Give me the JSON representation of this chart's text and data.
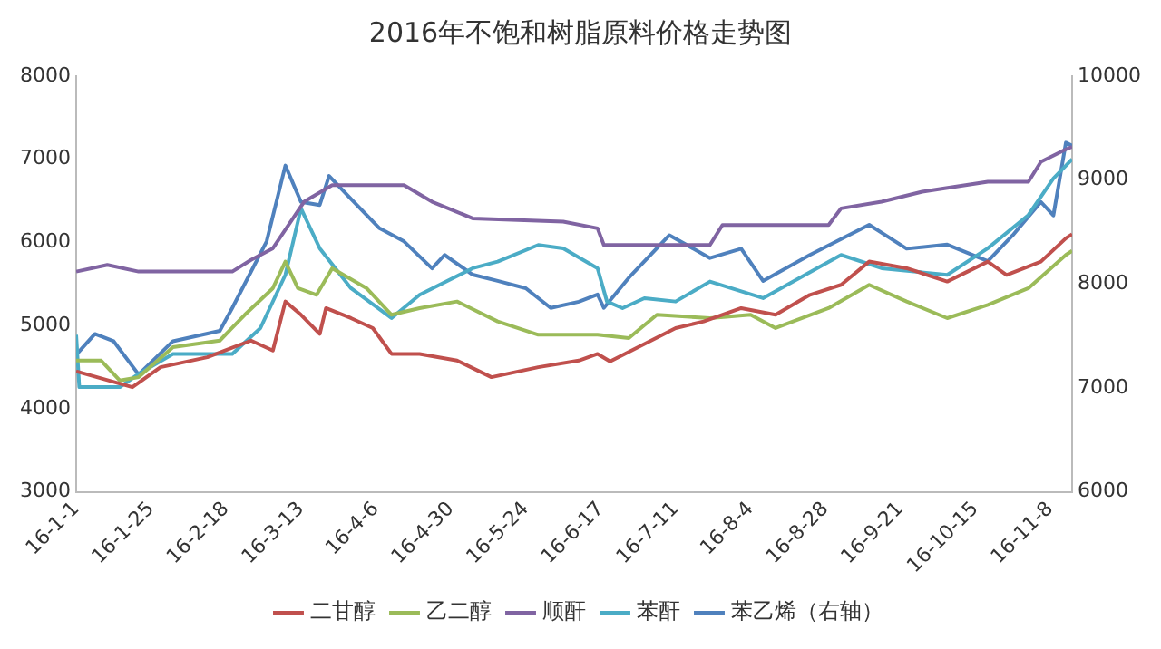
{
  "chart_data": {
    "type": "line",
    "title": "2016年不饱和树脂原料价格走势图",
    "marker": "none",
    "line_style": "solid",
    "grid": false,
    "legend": "bottom",
    "xlim": [
      "2016-01-01",
      "2016-11-15"
    ],
    "xticks": [
      {
        "value": "2016-01-01",
        "label": "16-1-1"
      },
      {
        "value": "2016-01-25",
        "label": "16-1-25"
      },
      {
        "value": "2016-02-18",
        "label": "16-2-18"
      },
      {
        "value": "2016-03-13",
        "label": "16-3-13"
      },
      {
        "value": "2016-04-06",
        "label": "16-4-6"
      },
      {
        "value": "2016-04-30",
        "label": "16-4-30"
      },
      {
        "value": "2016-05-24",
        "label": "16-5-24"
      },
      {
        "value": "2016-06-17",
        "label": "16-6-17"
      },
      {
        "value": "2016-07-11",
        "label": "16-7-11"
      },
      {
        "value": "2016-08-04",
        "label": "16-8-4"
      },
      {
        "value": "2016-08-28",
        "label": "16-8-28"
      },
      {
        "value": "2016-09-21",
        "label": "16-9-21"
      },
      {
        "value": "2016-10-15",
        "label": "16-10-15"
      },
      {
        "value": "2016-11-08",
        "label": "16-11-8"
      }
    ],
    "ylim": [
      3000,
      8000
    ],
    "yticks": [
      3000,
      4000,
      5000,
      6000,
      7000,
      8000
    ],
    "y2lim": [
      6000,
      10000
    ],
    "y2ticks": [
      6000,
      7000,
      8000,
      9000,
      10000
    ],
    "series": [
      {
        "name": "二甘醇",
        "color": "#c0504d",
        "x": [
          "2016-01-01",
          "2016-01-19",
          "2016-01-28",
          "2016-02-12",
          "2016-02-26",
          "2016-03-04",
          "2016-03-08",
          "2016-03-13",
          "2016-03-19",
          "2016-03-21",
          "2016-03-29",
          "2016-04-05",
          "2016-04-11",
          "2016-04-20",
          "2016-05-02",
          "2016-05-13",
          "2016-05-28",
          "2016-06-10",
          "2016-06-16",
          "2016-06-20",
          "2016-07-11",
          "2016-07-20",
          "2016-08-01",
          "2016-08-12",
          "2016-08-23",
          "2016-09-02",
          "2016-09-11",
          "2016-09-23",
          "2016-10-06",
          "2016-10-19",
          "2016-10-25",
          "2016-11-05",
          "2016-11-13",
          "2016-11-15"
        ],
        "values": [
          4450,
          4260,
          4500,
          4620,
          4820,
          4700,
          5290,
          5130,
          4900,
          5210,
          5090,
          4970,
          4660,
          4660,
          4580,
          4380,
          4500,
          4580,
          4660,
          4570,
          4970,
          5050,
          5210,
          5130,
          5370,
          5490,
          5770,
          5690,
          5530,
          5770,
          5610,
          5770,
          6050,
          6100
        ]
      },
      {
        "name": "乙二醇",
        "color": "#9bbb59",
        "x": [
          "2016-01-01",
          "2016-01-09",
          "2016-01-15",
          "2016-01-21",
          "2016-02-01",
          "2016-02-16",
          "2016-02-24",
          "2016-03-04",
          "2016-03-08",
          "2016-03-12",
          "2016-03-18",
          "2016-03-23",
          "2016-04-03",
          "2016-04-11",
          "2016-04-20",
          "2016-05-02",
          "2016-05-15",
          "2016-05-28",
          "2016-06-16",
          "2016-06-26",
          "2016-07-05",
          "2016-07-22",
          "2016-08-04",
          "2016-08-12",
          "2016-08-29",
          "2016-09-11",
          "2016-09-23",
          "2016-10-06",
          "2016-10-19",
          "2016-11-01",
          "2016-11-13",
          "2016-11-15"
        ],
        "values": [
          4580,
          4580,
          4340,
          4380,
          4740,
          4820,
          5130,
          5450,
          5770,
          5450,
          5370,
          5690,
          5450,
          5130,
          5210,
          5290,
          5050,
          4890,
          4890,
          4850,
          5130,
          5090,
          5130,
          4970,
          5210,
          5490,
          5290,
          5090,
          5250,
          5450,
          5850,
          5900
        ]
      },
      {
        "name": "顺酐",
        "color": "#8064a2",
        "x": [
          "2016-01-01",
          "2016-01-11",
          "2016-01-21",
          "2016-02-20",
          "2016-02-26",
          "2016-03-04",
          "2016-03-14",
          "2016-03-23",
          "2016-04-15",
          "2016-04-24",
          "2016-05-07",
          "2016-06-05",
          "2016-06-16",
          "2016-06-18",
          "2016-07-22",
          "2016-07-26",
          "2016-08-29",
          "2016-09-02",
          "2016-09-15",
          "2016-09-28",
          "2016-10-19",
          "2016-11-01",
          "2016-11-05",
          "2016-11-13",
          "2016-11-15"
        ],
        "values": [
          5650,
          5730,
          5650,
          5650,
          5790,
          5930,
          6490,
          6690,
          6690,
          6490,
          6290,
          6250,
          6170,
          5970,
          5970,
          6210,
          6210,
          6410,
          6490,
          6610,
          6730,
          6730,
          6970,
          7120,
          7150
        ]
      },
      {
        "name": "苯酐",
        "color": "#4bacc6",
        "x": [
          "2016-01-01",
          "2016-01-02",
          "2016-01-15",
          "2016-01-21",
          "2016-02-01",
          "2016-02-20",
          "2016-02-29",
          "2016-03-08",
          "2016-03-13",
          "2016-03-19",
          "2016-03-29",
          "2016-04-11",
          "2016-04-20",
          "2016-05-07",
          "2016-05-15",
          "2016-05-28",
          "2016-06-05",
          "2016-06-16",
          "2016-06-19",
          "2016-06-24",
          "2016-07-01",
          "2016-07-11",
          "2016-07-22",
          "2016-08-08",
          "2016-09-02",
          "2016-09-15",
          "2016-10-06",
          "2016-10-19",
          "2016-11-01",
          "2016-11-09",
          "2016-11-15"
        ],
        "values": [
          4890,
          4260,
          4260,
          4420,
          4660,
          4660,
          4970,
          5610,
          6410,
          5930,
          5450,
          5090,
          5370,
          5690,
          5770,
          5970,
          5930,
          5690,
          5290,
          5210,
          5330,
          5290,
          5530,
          5330,
          5850,
          5690,
          5610,
          5930,
          6330,
          6770,
          7000
        ]
      },
      {
        "name": "苯乙烯（右轴）",
        "color": "#4f81bd",
        "axis": "y2",
        "x": [
          "2016-01-01",
          "2016-01-07",
          "2016-01-13",
          "2016-01-21",
          "2016-02-01",
          "2016-02-16",
          "2016-02-20",
          "2016-03-02",
          "2016-03-08",
          "2016-03-13",
          "2016-03-19",
          "2016-03-22",
          "2016-03-29",
          "2016-04-07",
          "2016-04-15",
          "2016-04-24",
          "2016-04-28",
          "2016-05-07",
          "2016-05-15",
          "2016-05-24",
          "2016-06-01",
          "2016-06-10",
          "2016-06-16",
          "2016-06-18",
          "2016-06-26",
          "2016-07-09",
          "2016-07-22",
          "2016-08-01",
          "2016-08-08",
          "2016-08-23",
          "2016-09-11",
          "2016-09-23",
          "2016-10-06",
          "2016-10-19",
          "2016-10-27",
          "2016-11-05",
          "2016-11-09",
          "2016-11-13",
          "2016-11-15"
        ],
        "values": [
          7320,
          7520,
          7450,
          7130,
          7450,
          7550,
          7770,
          8410,
          9140,
          8790,
          8760,
          9040,
          8820,
          8540,
          8410,
          8150,
          8280,
          8090,
          8030,
          7960,
          7770,
          7830,
          7900,
          7770,
          8060,
          8470,
          8250,
          8340,
          8030,
          8280,
          8570,
          8340,
          8380,
          8220,
          8470,
          8790,
          8660,
          9360,
          9330
        ]
      }
    ]
  }
}
